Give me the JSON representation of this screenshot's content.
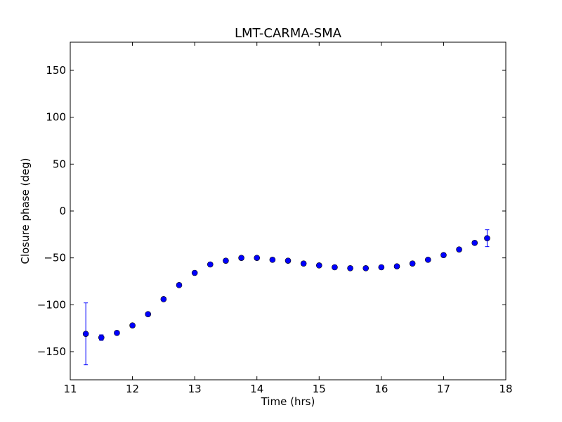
{
  "chart_data": {
    "type": "scatter",
    "title": "LMT-CARMA-SMA",
    "xlabel": "Time (hrs)",
    "ylabel": "Closure phase (deg)",
    "xlim": [
      11,
      18
    ],
    "ylim": [
      -180,
      180
    ],
    "xticks": [
      11,
      12,
      13,
      14,
      15,
      16,
      17,
      18
    ],
    "yticks": [
      -150,
      -100,
      -50,
      0,
      50,
      100,
      150
    ],
    "grid": false,
    "color": "#0000ff",
    "series": [
      {
        "x": [
          11.25,
          11.5,
          11.75,
          12.0,
          12.25,
          12.5,
          12.75,
          13.0,
          13.25,
          13.5,
          13.75,
          14.0,
          14.25,
          14.5,
          14.75,
          15.0,
          15.25,
          15.5,
          15.75,
          16.0,
          16.25,
          16.5,
          16.75,
          17.0,
          17.25,
          17.5,
          17.7
        ],
        "y": [
          -131,
          -135,
          -130,
          -122,
          -110,
          -94,
          -79,
          -66,
          -57,
          -53,
          -50,
          -50,
          -52,
          -53,
          -56,
          -58,
          -60,
          -61,
          -61,
          -60,
          -59,
          -56,
          -52,
          -47,
          -41,
          -34,
          -29
        ],
        "yerr": [
          33,
          3,
          2,
          2,
          2,
          2,
          2,
          2,
          2,
          2,
          2,
          2,
          2,
          2,
          2,
          2,
          2,
          2,
          2,
          2,
          2,
          2,
          2,
          2,
          2,
          2,
          9
        ]
      }
    ]
  }
}
